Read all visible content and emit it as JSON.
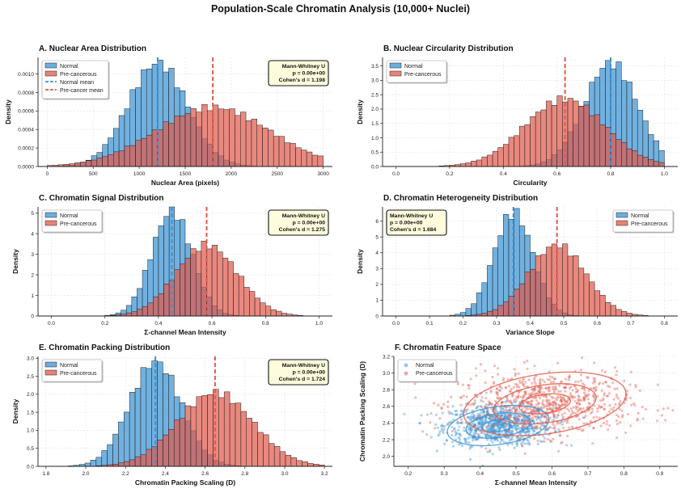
{
  "figure": {
    "title": "Population-Scale Chromatin Analysis (10,000+ Nuclei)"
  },
  "colors": {
    "normal": "#3a93d4",
    "precancer": "#e05a4c",
    "normal_line": "#3a93d4",
    "precancer_line": "#e05a4c",
    "stats_bg": "#fffbdc"
  },
  "chart_data": [
    {
      "id": "A",
      "type": "histogram",
      "title": "A. Nuclear Area Distribution",
      "xlabel": "Nuclear Area (pixels)",
      "ylabel": "Density",
      "xlim": [
        -100,
        3100
      ],
      "ylim": [
        0,
        0.00118
      ],
      "xticks": [
        0,
        500,
        1000,
        1500,
        2000,
        2500,
        3000
      ],
      "xtick_labels": [
        "0",
        "500",
        "1000",
        "1500",
        "2000",
        "2500",
        "3000"
      ],
      "yticks": [
        0,
        0.0002,
        0.0004,
        0.0006,
        0.0008,
        0.001
      ],
      "ytick_labels": [
        "0.0000",
        "0.0002",
        "0.0004",
        "0.0006",
        "0.0008",
        "0.0010"
      ],
      "bins": {
        "start": 0,
        "width": 60,
        "count": 50
      },
      "normal": {
        "mean": 1200,
        "sd": 320,
        "peak": 0.00112
      },
      "precancer": {
        "mean": 1800,
        "sd": 620,
        "peak": 0.00064
      },
      "series": [
        {
          "name": "Normal",
          "mean_value": 1200
        },
        {
          "name": "Pre-cancerous",
          "mean_value": 1800
        }
      ],
      "legend_entries": [
        "Normal",
        "Pre-cancerous",
        "Normal mean",
        "Pre-cancer mean"
      ],
      "legend_loc": "upper-left",
      "stats": {
        "test": "Mann-Whitney U",
        "p": "p = 0.00e+00",
        "d": "Cohen's d = 1.198"
      },
      "stats_loc": "upper-right"
    },
    {
      "id": "B",
      "type": "histogram",
      "title": "B. Nuclear Circularity Distribution",
      "xlabel": "Circularity",
      "ylabel": "Density",
      "xlim": [
        -0.05,
        1.05
      ],
      "ylim": [
        0,
        3.8
      ],
      "xticks": [
        0,
        0.2,
        0.4,
        0.6,
        0.8,
        1.0
      ],
      "xtick_labels": [
        "0.0",
        "0.2",
        "0.4",
        "0.6",
        "0.8",
        "1.0"
      ],
      "yticks": [
        0,
        0.5,
        1.0,
        1.5,
        2.0,
        2.5,
        3.0,
        3.5
      ],
      "ytick_labels": [
        "0.0",
        "0.5",
        "1.0",
        "1.5",
        "2.0",
        "2.5",
        "3.0",
        "3.5"
      ],
      "bins": {
        "start": 0.0,
        "width": 0.02,
        "count": 50
      },
      "normal": {
        "mean": 0.8,
        "sd": 0.1,
        "peak": 3.6,
        "skew_cap": 1.0
      },
      "precancer": {
        "mean": 0.63,
        "sd": 0.15,
        "peak": 2.35,
        "skew_cap": 1.0
      },
      "series": [
        {
          "name": "Normal",
          "mean_value": 0.8
        },
        {
          "name": "Pre-cancerous",
          "mean_value": 0.63
        }
      ],
      "legend_entries": [
        "Normal",
        "Pre-cancerous"
      ],
      "legend_loc": "upper-left",
      "stats": null
    },
    {
      "id": "C",
      "type": "histogram",
      "title": "C. Chromatin Signal Distribution",
      "xlabel": "Σ-channel Mean Intensity",
      "ylabel": "Density",
      "xlim": [
        -0.05,
        1.05
      ],
      "ylim": [
        0,
        5.3
      ],
      "xticks": [
        0,
        0.2,
        0.4,
        0.6,
        0.8,
        1.0
      ],
      "xtick_labels": [
        "0.0",
        "0.2",
        "0.4",
        "0.6",
        "0.8",
        "1.0"
      ],
      "yticks": [
        0,
        1,
        2,
        3,
        4,
        5
      ],
      "ytick_labels": [
        "0",
        "1",
        "2",
        "3",
        "4",
        "5"
      ],
      "bins": {
        "start": 0.0,
        "width": 0.02,
        "count": 50
      },
      "normal": {
        "mean": 0.45,
        "sd": 0.075,
        "peak": 5.1
      },
      "precancer": {
        "mean": 0.58,
        "sd": 0.115,
        "peak": 3.45
      },
      "series": [
        {
          "name": "Normal",
          "mean_value": 0.45
        },
        {
          "name": "Pre-cancerous",
          "mean_value": 0.58
        }
      ],
      "legend_entries": [
        "Normal",
        "Pre-cancerous"
      ],
      "legend_loc": "upper-left",
      "stats": {
        "test": "Mann-Whitney U",
        "p": "p = 0.00e+00",
        "d": "Cohen's d = 1.275"
      },
      "stats_loc": "upper-right"
    },
    {
      "id": "D",
      "type": "histogram",
      "title": "D. Chromatin Heterogeneity Distribution",
      "xlabel": "Variance Slope",
      "ylabel": "Density",
      "xlim": [
        -0.04,
        0.84
      ],
      "ylim": [
        0,
        6.9
      ],
      "xticks": [
        0,
        0.1,
        0.2,
        0.3,
        0.4,
        0.5,
        0.6,
        0.7,
        0.8
      ],
      "xtick_labels": [
        "0.0",
        "0.1",
        "0.2",
        "0.3",
        "0.4",
        "0.5",
        "0.6",
        "0.7",
        "0.8"
      ],
      "yticks": [
        0,
        1,
        2,
        3,
        4,
        5,
        6
      ],
      "ytick_labels": [
        "0",
        "1",
        "2",
        "3",
        "4",
        "5",
        "6"
      ],
      "bins": {
        "start": 0.0,
        "width": 0.016,
        "count": 50
      },
      "normal": {
        "mean": 0.35,
        "sd": 0.058,
        "peak": 6.55
      },
      "precancer": {
        "mean": 0.48,
        "sd": 0.085,
        "peak": 4.5
      },
      "series": [
        {
          "name": "Normal",
          "mean_value": 0.35
        },
        {
          "name": "Pre-cancerous",
          "mean_value": 0.48
        }
      ],
      "legend_entries": [
        "Normal",
        "Pre-cancerous"
      ],
      "legend_loc": "upper-right",
      "stats": {
        "test": "Mann-Whitney U",
        "p": "p = 0.00e+00",
        "d": "Cohen's d = 1.684"
      },
      "stats_loc": "upper-left"
    },
    {
      "id": "E",
      "type": "histogram",
      "title": "E. Chromatin Packing Distribution",
      "xlabel": "Chromatin Packing Scaling (D)",
      "ylabel": "Density",
      "xlim": [
        1.76,
        3.24
      ],
      "ylim": [
        0,
        3.05
      ],
      "xticks": [
        1.8,
        2.0,
        2.2,
        2.4,
        2.6,
        2.8,
        3.0,
        3.2
      ],
      "xtick_labels": [
        "1.8",
        "2.0",
        "2.2",
        "2.4",
        "2.6",
        "2.8",
        "3.0",
        "3.2"
      ],
      "yticks": [
        0,
        0.5,
        1.0,
        1.5,
        2.0,
        2.5,
        3.0
      ],
      "ytick_labels": [
        "0.0",
        "0.5",
        "1.0",
        "1.5",
        "2.0",
        "2.5",
        "3.0"
      ],
      "bins": {
        "start": 1.8,
        "width": 0.028,
        "count": 50
      },
      "normal": {
        "mean": 2.35,
        "sd": 0.13,
        "peak": 2.9
      },
      "precancer": {
        "mean": 2.65,
        "sd": 0.19,
        "peak": 2.05
      },
      "series": [
        {
          "name": "Normal",
          "mean_value": 2.35
        },
        {
          "name": "Pre-cancerous",
          "mean_value": 2.65
        }
      ],
      "legend_entries": [
        "Normal",
        "Pre-cancerous"
      ],
      "legend_loc": "upper-left",
      "stats": {
        "test": "Mann-Whitney U",
        "p": "p = 0.00e+00",
        "d": "Cohen's d = 1.724"
      },
      "stats_loc": "upper-right"
    },
    {
      "id": "F",
      "type": "scatter",
      "title": "F. Chromatin Feature Space",
      "xlabel": "Σ-channel Mean Intensity",
      "ylabel": "Chromatin Packing Scaling (D)",
      "xlim": [
        0.16,
        0.95
      ],
      "ylim": [
        1.88,
        3.2
      ],
      "xticks": [
        0.2,
        0.3,
        0.4,
        0.5,
        0.6,
        0.7,
        0.8,
        0.9
      ],
      "xtick_labels": [
        "0.2",
        "0.3",
        "0.4",
        "0.5",
        "0.6",
        "0.7",
        "0.8",
        "0.9"
      ],
      "yticks": [
        2.0,
        2.2,
        2.4,
        2.6,
        2.8,
        3.0,
        3.2
      ],
      "ytick_labels": [
        "2.0",
        "2.2",
        "2.4",
        "2.6",
        "2.8",
        "3.0",
        "3.2"
      ],
      "normal": {
        "center": [
          0.45,
          2.37
        ],
        "sd": [
          0.075,
          0.12
        ],
        "n": 800
      },
      "precancer": {
        "center": [
          0.58,
          2.63
        ],
        "sd": [
          0.12,
          0.19
        ],
        "n": 800
      },
      "series": [
        {
          "name": "Normal",
          "center_x": 0.45,
          "center_y": 2.37
        },
        {
          "name": "Pre-cancerous",
          "center_x": 0.58,
          "center_y": 2.63
        }
      ],
      "legend_entries": [
        "Normal",
        "Pre-cancerous"
      ],
      "legend_loc": "upper-left",
      "stats": null
    }
  ]
}
